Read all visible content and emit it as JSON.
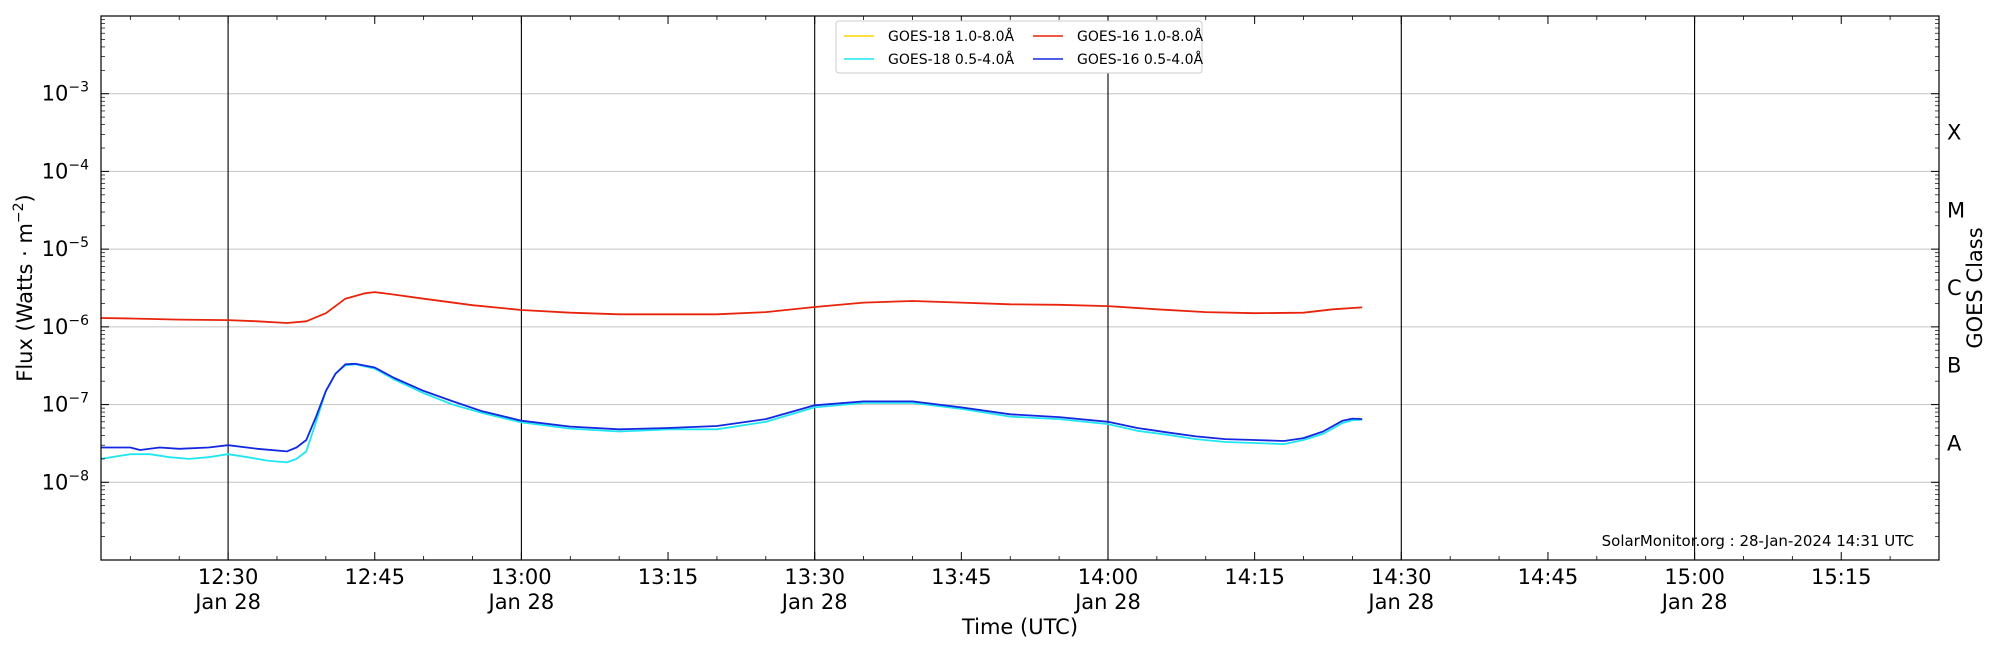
{
  "chart_data": {
    "type": "line",
    "xlabel": "Time (UTC)",
    "ylabel": "Flux (Watts · m",
    "ylabel_sup": "−2",
    "ylabel_close": ")",
    "right_label": "GOES Class",
    "credit": "SolarMonitor.org : 28-Jan-2024 14:31 UTC",
    "y_scale": "log",
    "ylim": [
      1e-09,
      0.01
    ],
    "xlim": [
      "12:17",
      "15:25"
    ],
    "grid": "horizontal",
    "legend_position": "top-center",
    "x_ticks": [
      {
        "t": "12:30",
        "line1": "12:30",
        "line2": "Jan 28"
      },
      {
        "t": "12:45",
        "line1": "12:45",
        "line2": ""
      },
      {
        "t": "13:00",
        "line1": "13:00",
        "line2": "Jan 28"
      },
      {
        "t": "13:15",
        "line1": "13:15",
        "line2": ""
      },
      {
        "t": "13:30",
        "line1": "13:30",
        "line2": "Jan 28"
      },
      {
        "t": "13:45",
        "line1": "13:45",
        "line2": ""
      },
      {
        "t": "14:00",
        "line1": "14:00",
        "line2": "Jan 28"
      },
      {
        "t": "14:15",
        "line1": "14:15",
        "line2": ""
      },
      {
        "t": "14:30",
        "line1": "14:30",
        "line2": "Jan 28"
      },
      {
        "t": "14:45",
        "line1": "14:45",
        "line2": ""
      },
      {
        "t": "15:00",
        "line1": "15:00",
        "line2": "Jan 28"
      },
      {
        "t": "15:15",
        "line1": "15:15",
        "line2": ""
      }
    ],
    "vertical_lines": [
      "12:30",
      "13:00",
      "13:30",
      "14:00",
      "14:30",
      "15:00"
    ],
    "y_ticks": [
      {
        "exp": -8,
        "base": "10",
        "sup": "−8"
      },
      {
        "exp": -7,
        "base": "10",
        "sup": "−7"
      },
      {
        "exp": -6,
        "base": "10",
        "sup": "−6"
      },
      {
        "exp": -5,
        "base": "10",
        "sup": "−5"
      },
      {
        "exp": -4,
        "base": "10",
        "sup": "−4"
      },
      {
        "exp": -3,
        "base": "10",
        "sup": "−3"
      }
    ],
    "goes_classes": [
      {
        "label": "A",
        "exp": -7.5
      },
      {
        "label": "B",
        "exp": -6.5
      },
      {
        "label": "C",
        "exp": -5.5
      },
      {
        "label": "M",
        "exp": -4.5
      },
      {
        "label": "X",
        "exp": -3.5
      }
    ],
    "series": [
      {
        "name": "GOES-18 1.0-8.0Å",
        "color": "#ffd400",
        "draw": false,
        "points": []
      },
      {
        "name": "GOES-18 0.5-4.0Å",
        "color": "#1fe6f0",
        "draw": true,
        "points": [
          [
            "12:17",
            2e-08
          ],
          [
            "12:20",
            2.3e-08
          ],
          [
            "12:22",
            2.3e-08
          ],
          [
            "12:24",
            2.1e-08
          ],
          [
            "12:26",
            2e-08
          ],
          [
            "12:28",
            2.1e-08
          ],
          [
            "12:30",
            2.3e-08
          ],
          [
            "12:32",
            2.1e-08
          ],
          [
            "12:34",
            1.9e-08
          ],
          [
            "12:36",
            1.8e-08
          ],
          [
            "12:37",
            2e-08
          ],
          [
            "12:38",
            2.5e-08
          ],
          [
            "12:39",
            6e-08
          ],
          [
            "12:40",
            1.5e-07
          ],
          [
            "12:41",
            2.5e-07
          ],
          [
            "12:42",
            3.2e-07
          ],
          [
            "12:43",
            3.3e-07
          ],
          [
            "12:45",
            2.9e-07
          ],
          [
            "12:47",
            2.1e-07
          ],
          [
            "12:50",
            1.4e-07
          ],
          [
            "12:53",
            1e-07
          ],
          [
            "12:56",
            7.8e-08
          ],
          [
            "13:00",
            5.9e-08
          ],
          [
            "13:05",
            4.9e-08
          ],
          [
            "13:10",
            4.5e-08
          ],
          [
            "13:15",
            4.8e-08
          ],
          [
            "13:20",
            4.8e-08
          ],
          [
            "13:25",
            6e-08
          ],
          [
            "13:30",
            9.2e-08
          ],
          [
            "13:35",
            1.05e-07
          ],
          [
            "13:40",
            1.05e-07
          ],
          [
            "13:45",
            8.8e-08
          ],
          [
            "13:50",
            7e-08
          ],
          [
            "13:55",
            6.5e-08
          ],
          [
            "14:00",
            5.6e-08
          ],
          [
            "14:03",
            4.6e-08
          ],
          [
            "14:06",
            4.1e-08
          ],
          [
            "14:09",
            3.6e-08
          ],
          [
            "14:12",
            3.3e-08
          ],
          [
            "14:15",
            3.2e-08
          ],
          [
            "14:18",
            3.1e-08
          ],
          [
            "14:20",
            3.5e-08
          ],
          [
            "14:22",
            4.2e-08
          ],
          [
            "14:24",
            5.8e-08
          ],
          [
            "14:25",
            6.3e-08
          ],
          [
            "14:26",
            6.4e-08
          ]
        ]
      },
      {
        "name": "GOES-16 1.0-8.0Å",
        "color": "#e8240c",
        "draw": true,
        "points": [
          [
            "12:17",
            1.3e-06
          ],
          [
            "12:20",
            1.28e-06
          ],
          [
            "12:25",
            1.24e-06
          ],
          [
            "12:30",
            1.22e-06
          ],
          [
            "12:33",
            1.18e-06
          ],
          [
            "12:36",
            1.12e-06
          ],
          [
            "12:38",
            1.18e-06
          ],
          [
            "12:40",
            1.5e-06
          ],
          [
            "12:42",
            2.3e-06
          ],
          [
            "12:44",
            2.7e-06
          ],
          [
            "12:45",
            2.8e-06
          ],
          [
            "12:47",
            2.6e-06
          ],
          [
            "12:50",
            2.3e-06
          ],
          [
            "12:55",
            1.9e-06
          ],
          [
            "13:00",
            1.65e-06
          ],
          [
            "13:05",
            1.52e-06
          ],
          [
            "13:10",
            1.45e-06
          ],
          [
            "13:15",
            1.45e-06
          ],
          [
            "13:20",
            1.45e-06
          ],
          [
            "13:25",
            1.55e-06
          ],
          [
            "13:30",
            1.8e-06
          ],
          [
            "13:35",
            2.05e-06
          ],
          [
            "13:40",
            2.15e-06
          ],
          [
            "13:45",
            2.05e-06
          ],
          [
            "13:50",
            1.95e-06
          ],
          [
            "13:55",
            1.92e-06
          ],
          [
            "14:00",
            1.85e-06
          ],
          [
            "14:05",
            1.68e-06
          ],
          [
            "14:10",
            1.55e-06
          ],
          [
            "14:15",
            1.5e-06
          ],
          [
            "14:20",
            1.52e-06
          ],
          [
            "14:23",
            1.68e-06
          ],
          [
            "14:26",
            1.78e-06
          ]
        ]
      },
      {
        "name": "GOES-16 0.5-4.0Å",
        "color": "#1428e0",
        "draw": true,
        "points": [
          [
            "12:17",
            2.8e-08
          ],
          [
            "12:20",
            2.8e-08
          ],
          [
            "12:21",
            2.6e-08
          ],
          [
            "12:23",
            2.8e-08
          ],
          [
            "12:25",
            2.7e-08
          ],
          [
            "12:28",
            2.8e-08
          ],
          [
            "12:30",
            3e-08
          ],
          [
            "12:33",
            2.7e-08
          ],
          [
            "12:36",
            2.5e-08
          ],
          [
            "12:37",
            2.8e-08
          ],
          [
            "12:38",
            3.5e-08
          ],
          [
            "12:39",
            7e-08
          ],
          [
            "12:40",
            1.5e-07
          ],
          [
            "12:41",
            2.5e-07
          ],
          [
            "12:42",
            3.3e-07
          ],
          [
            "12:43",
            3.35e-07
          ],
          [
            "12:45",
            3e-07
          ],
          [
            "12:47",
            2.2e-07
          ],
          [
            "12:50",
            1.5e-07
          ],
          [
            "12:53",
            1.1e-07
          ],
          [
            "12:56",
            8.2e-08
          ],
          [
            "13:00",
            6.2e-08
          ],
          [
            "13:05",
            5.2e-08
          ],
          [
            "13:10",
            4.8e-08
          ],
          [
            "13:15",
            5e-08
          ],
          [
            "13:20",
            5.3e-08
          ],
          [
            "13:25",
            6.5e-08
          ],
          [
            "13:30",
            9.8e-08
          ],
          [
            "13:35",
            1.1e-07
          ],
          [
            "13:40",
            1.1e-07
          ],
          [
            "13:45",
            9.2e-08
          ],
          [
            "13:50",
            7.5e-08
          ],
          [
            "13:55",
            6.9e-08
          ],
          [
            "14:00",
            6e-08
          ],
          [
            "14:03",
            5e-08
          ],
          [
            "14:06",
            4.4e-08
          ],
          [
            "14:09",
            3.9e-08
          ],
          [
            "14:12",
            3.6e-08
          ],
          [
            "14:15",
            3.5e-08
          ],
          [
            "14:18",
            3.4e-08
          ],
          [
            "14:20",
            3.7e-08
          ],
          [
            "14:22",
            4.5e-08
          ],
          [
            "14:24",
            6.2e-08
          ],
          [
            "14:25",
            6.6e-08
          ],
          [
            "14:26",
            6.5e-08
          ]
        ]
      }
    ],
    "legend_order": [
      0,
      1,
      2,
      3
    ]
  }
}
